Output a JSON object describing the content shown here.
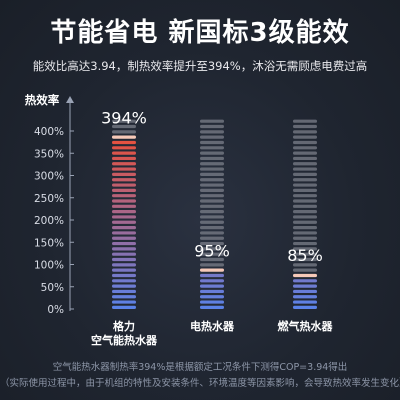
{
  "header": {
    "title": "节能省电 新国标3级能效",
    "subtitle": "能效比高达3.94，制热效率提升至394%，沐浴无需顾虑电费过高"
  },
  "chart_data": {
    "type": "bar",
    "ylabel": "热效率",
    "ylim": [
      0,
      400
    ],
    "yticks": [
      "0%",
      "50%",
      "100%",
      "150%",
      "200%",
      "250%",
      "300%",
      "350%",
      "400%"
    ],
    "categories": [
      [
        "格力",
        "空气能热水器"
      ],
      [
        "电热水器"
      ],
      [
        "燃气热水器"
      ]
    ],
    "series": [
      {
        "values": [
          394,
          95,
          85
        ]
      }
    ],
    "data_labels": [
      "394%",
      "95%",
      "85%"
    ],
    "colors": {
      "bottom": "#5b82e8",
      "top": "#e8503c",
      "highlight_top": "#f6c9b8",
      "track": "#7b7f8a"
    }
  },
  "footnotes": [
    "空气能热水器制热率394%是根据额定工况条件下测得COP=3.94得出",
    "（实际使用过程中，由于机组的特性及安装条件、环境温度等因素影响，会导致热效率发生变化）"
  ]
}
